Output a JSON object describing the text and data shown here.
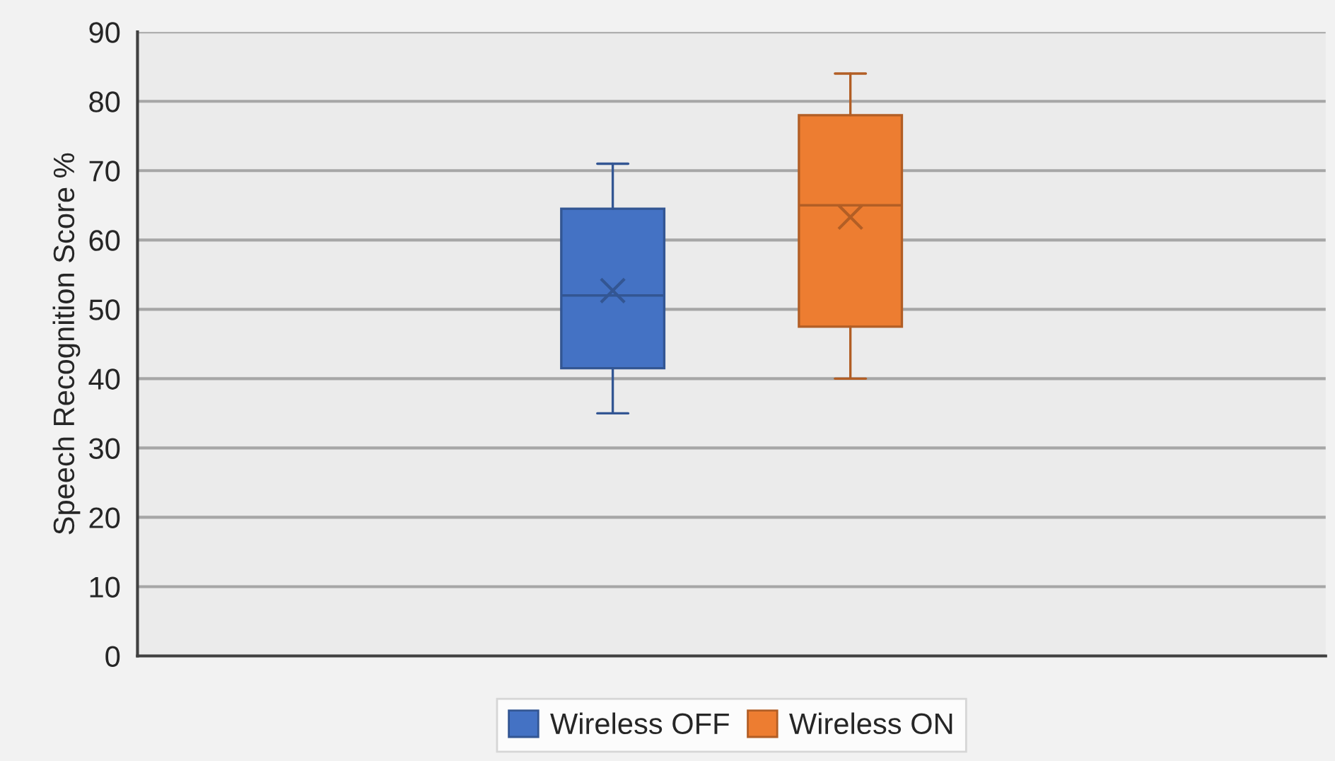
{
  "chart_data": {
    "type": "box",
    "ylabel": "Speech Recognition Score %",
    "categories": [
      null
    ],
    "series": [
      {
        "name": "Wireless OFF",
        "color": "#4472c4",
        "boxes": [
          {
            "low": 35,
            "q1": 41.5,
            "median": 52,
            "q3": 64.5,
            "high": 71,
            "mean": 52.7
          }
        ]
      },
      {
        "name": "Wireless ON",
        "color": "#ed7d31",
        "boxes": [
          {
            "low": 40,
            "q1": 47.5,
            "median": 65,
            "q3": 78,
            "high": 84,
            "mean": 63.3
          }
        ]
      }
    ],
    "ylim": [
      0,
      90
    ],
    "yticks": [
      0,
      10,
      20,
      30,
      40,
      50,
      60,
      70,
      80,
      90
    ],
    "grid": "y",
    "legend": "bottom",
    "marker": "cross"
  }
}
